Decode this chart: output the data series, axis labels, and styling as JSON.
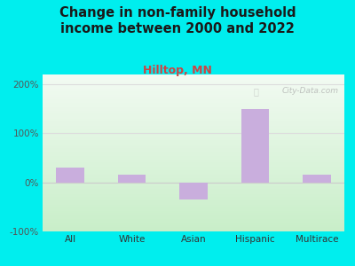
{
  "title": "Change in non-family household\nincome between 2000 and 2022",
  "subtitle": "Hilltop, MN",
  "categories": [
    "All",
    "White",
    "Asian",
    "Hispanic",
    "Multirace"
  ],
  "values": [
    30,
    15,
    -35,
    150,
    15
  ],
  "bar_color": "#c9aedd",
  "title_color": "#1a1a1a",
  "subtitle_color": "#cc4444",
  "background_outer": "#00eeee",
  "background_inner_top": "#f0faf0",
  "background_inner_bottom": "#d8f0d8",
  "ylim": [
    -100,
    220
  ],
  "yticks": [
    -100,
    0,
    100,
    200
  ],
  "ytick_labels": [
    "-100%",
    "0%",
    "100%",
    "200%"
  ],
  "watermark": "City-Data.com",
  "grid_color": "#dddddd",
  "zero_line_color": "#cccccc",
  "title_fontsize": 10.5,
  "subtitle_fontsize": 9,
  "tick_fontsize": 7.5,
  "bar_width": 0.45
}
